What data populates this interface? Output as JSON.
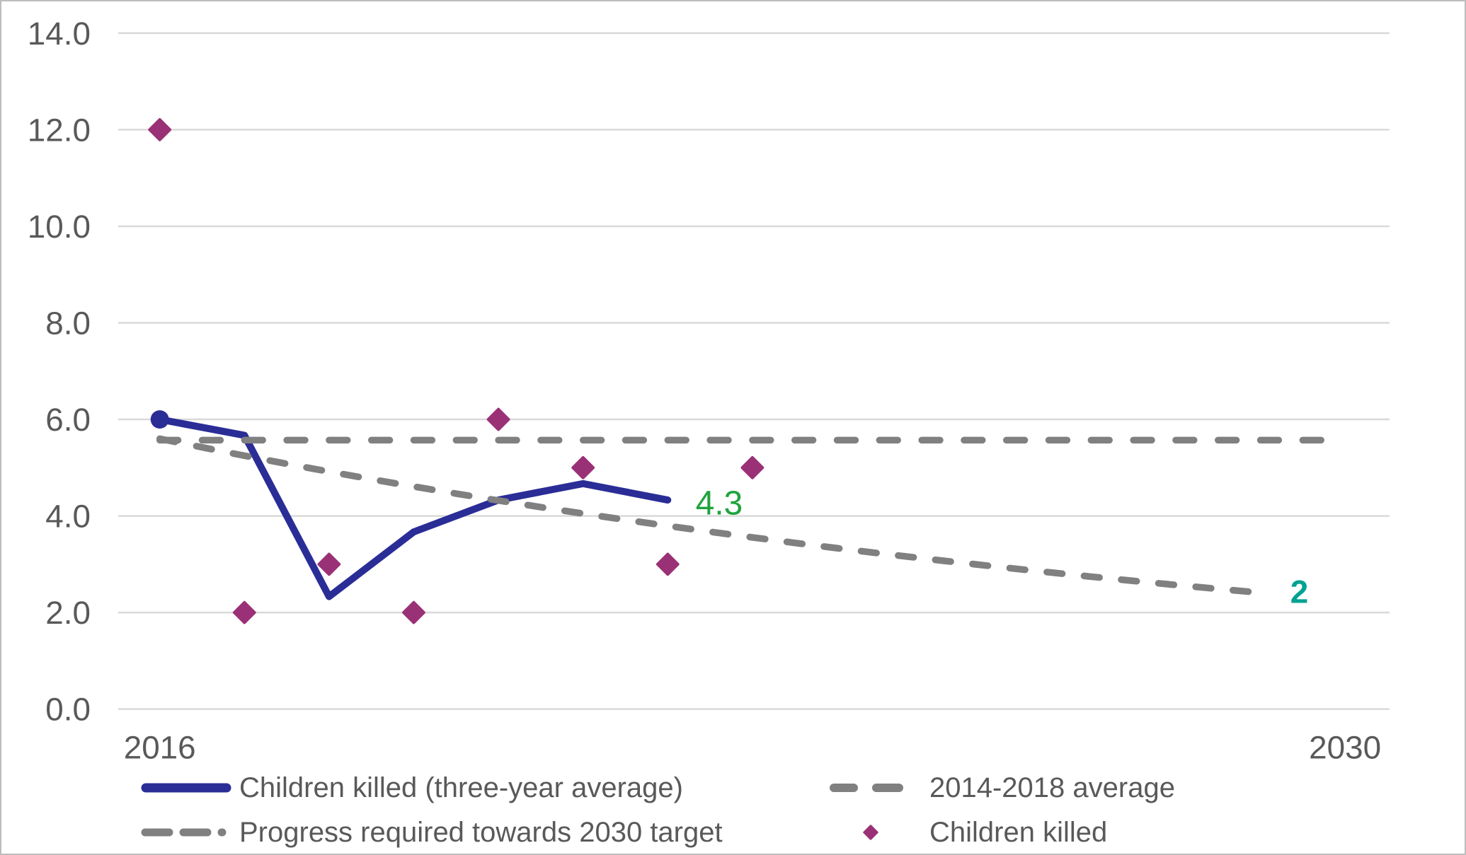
{
  "chart_data": {
    "type": "line+scatter",
    "title": "",
    "x_axis": {
      "ticks": [
        "2016",
        "2030"
      ],
      "tick_years": [
        2016,
        2030
      ],
      "range": [
        2016,
        2030
      ],
      "grid": false
    },
    "y_axis": {
      "ticks": [
        "14.0",
        "12.0",
        "10.0",
        "8.0",
        "6.0",
        "4.0",
        "2.0",
        "0.0"
      ],
      "tick_values": [
        14,
        12,
        10,
        8,
        6,
        4,
        2,
        0
      ],
      "range": [
        0,
        14
      ],
      "grid": true
    },
    "series": [
      {
        "name": "Children killed (three-year average)",
        "type": "line",
        "color_key": "blue",
        "x": [
          2016,
          2017,
          2018,
          2019,
          2020,
          2021,
          2022
        ],
        "values": [
          6.0,
          5.67,
          2.33,
          3.67,
          4.33,
          4.67,
          4.33
        ],
        "marker_first_point": true
      },
      {
        "name": "2014-2018 average",
        "type": "dashed-line",
        "color_key": "gray_dash",
        "x": [
          2016,
          2029.93
        ],
        "values": [
          5.57,
          5.57
        ]
      },
      {
        "name": "Progress required towards 2030 target",
        "type": "dashed-curve",
        "color_key": "gray_dash",
        "start_year": 2016,
        "end_year": 2029.1,
        "start_value": 5.6,
        "annual_rate": 0.9372,
        "end_value_approx": 2.4
      },
      {
        "name": "Children killed",
        "type": "scatter-diamond",
        "color_key": "purple",
        "x": [
          2016,
          2017,
          2018,
          2019,
          2020,
          2021,
          2022,
          2023
        ],
        "values": [
          12,
          2,
          3,
          2,
          6,
          5,
          3,
          5
        ]
      }
    ],
    "annotations": [
      {
        "text": "4.3",
        "year": 2022.33,
        "value": 4.28,
        "color_key": "green",
        "bold": false,
        "anchor": "start",
        "font_size": 48
      },
      {
        "text": "2",
        "year": 2029.46,
        "value": 2.45,
        "color_key": "teal",
        "bold": true,
        "anchor": "middle",
        "font_size": 46
      }
    ],
    "colors": {
      "blue": "#2A2D96",
      "purple": "#9A3176",
      "gray_dash": "#808080",
      "grid": "#D9D9D9",
      "text": "#595959",
      "green": "#1FA33D",
      "teal": "#00A291",
      "border": "#BDBDBD"
    },
    "legend": {
      "position": "bottom",
      "items": [
        {
          "label": "Children killed (three-year average)",
          "marker": "solid-line-blue"
        },
        {
          "label": "2014-2018 average",
          "marker": "dashed-line-gray"
        },
        {
          "label": "Progress required towards 2030 target",
          "marker": "dash-dash-dot-gray"
        },
        {
          "label": "Children killed",
          "marker": "diamond-purple"
        }
      ]
    }
  }
}
